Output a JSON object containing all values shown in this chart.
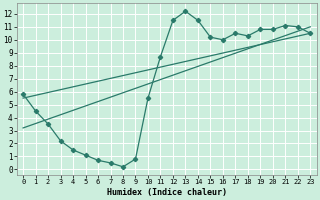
{
  "title": "",
  "xlabel": "Humidex (Indice chaleur)",
  "ylabel": "",
  "bg_color": "#cceedd",
  "grid_color": "#ffffff",
  "line_color": "#2a7a6a",
  "xlim": [
    -0.5,
    23.5
  ],
  "ylim": [
    -0.4,
    12.8
  ],
  "xticks": [
    0,
    1,
    2,
    3,
    4,
    5,
    6,
    7,
    8,
    9,
    10,
    11,
    12,
    13,
    14,
    15,
    16,
    17,
    18,
    19,
    20,
    21,
    22,
    23
  ],
  "yticks": [
    0,
    1,
    2,
    3,
    4,
    5,
    6,
    7,
    8,
    9,
    10,
    11,
    12
  ],
  "line1_x": [
    0,
    1,
    2,
    3,
    4,
    5,
    6,
    7,
    8,
    9,
    10,
    11,
    12,
    13,
    14,
    15,
    16,
    17,
    18,
    19,
    20,
    21,
    22,
    23
  ],
  "line1_y": [
    5.8,
    4.5,
    3.5,
    2.2,
    1.5,
    1.1,
    0.7,
    0.5,
    0.2,
    0.8,
    5.5,
    8.7,
    11.5,
    12.2,
    11.5,
    10.2,
    10.0,
    10.5,
    10.3,
    10.8,
    10.8,
    11.1,
    11.0,
    10.5
  ],
  "line2_x": [
    0,
    23
  ],
  "line2_y": [
    3.2,
    11.0
  ],
  "line3_x": [
    0,
    23
  ],
  "line3_y": [
    5.5,
    10.5
  ],
  "marker": "D",
  "markersize": 2.2,
  "linewidth": 0.9
}
